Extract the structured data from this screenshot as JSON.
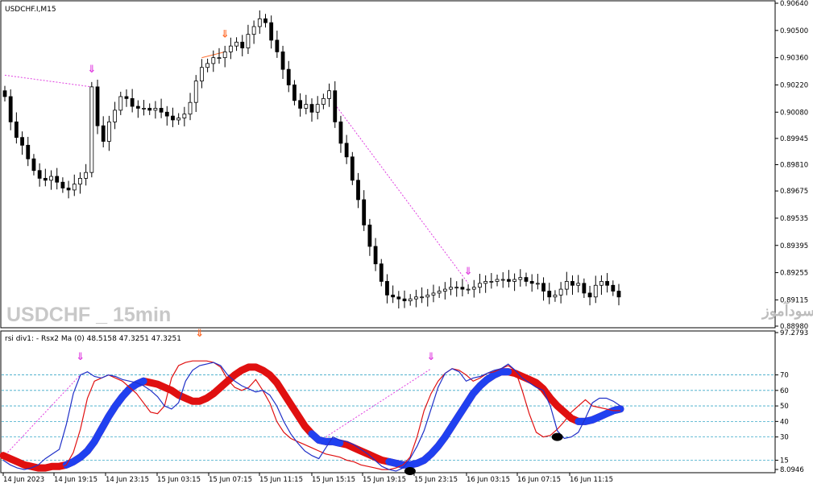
{
  "chart_data": [
    {
      "type": "candlestick",
      "title": "USDCHF.I,M15",
      "watermark": "USDCHF _ 15min",
      "watermark_site": "انتشار در سایت سودآموز",
      "ylim": [
        0.8898,
        0.9064
      ],
      "yticks": [
        "0.90640",
        "0.90500",
        "0.90360",
        "0.90220",
        "0.90080",
        "0.89945",
        "0.89810",
        "0.89675",
        "0.89535",
        "0.89395",
        "0.89255",
        "0.89115",
        "0.88980"
      ],
      "ytick_values": [
        0.9064,
        0.905,
        0.9036,
        0.9022,
        0.9008,
        0.89945,
        0.8981,
        0.89675,
        0.89535,
        0.89395,
        0.89255,
        0.89115,
        0.8898
      ],
      "close": [
        0.9016,
        0.9003,
        0.8995,
        0.8991,
        0.8984,
        0.8978,
        0.8974,
        0.8973,
        0.8975,
        0.8972,
        0.8969,
        0.8968,
        0.8971,
        0.8974,
        0.8977,
        0.9021,
        0.9001,
        0.8993,
        0.9003,
        0.9009,
        0.9016,
        0.9015,
        0.9011,
        0.901,
        0.901,
        0.9009,
        0.901,
        0.9008,
        0.9006,
        0.9004,
        0.9005,
        0.9007,
        0.9013,
        0.9024,
        0.9031,
        0.9033,
        0.9036,
        0.9036,
        0.9039,
        0.9042,
        0.9044,
        0.9041,
        0.9048,
        0.9052,
        0.9056,
        0.9054,
        0.9045,
        0.9039,
        0.903,
        0.9022,
        0.9014,
        0.901,
        0.9012,
        0.9008,
        0.9012,
        0.9015,
        0.9019,
        0.9003,
        0.8992,
        0.8985,
        0.8973,
        0.8963,
        0.895,
        0.8939,
        0.893,
        0.8921,
        0.8914,
        0.8913,
        0.8912,
        0.8911,
        0.8912,
        0.8913,
        0.8913,
        0.8914,
        0.8915,
        0.8916,
        0.8917,
        0.8918,
        0.8918,
        0.8917,
        0.8917,
        0.8918,
        0.892,
        0.8921,
        0.8921,
        0.8922,
        0.8922,
        0.8921,
        0.8922,
        0.8923,
        0.8921,
        0.892,
        0.892,
        0.8916,
        0.8913,
        0.8914,
        0.8917,
        0.8921,
        0.8919,
        0.892,
        0.8915,
        0.8913,
        0.8919,
        0.8921,
        0.8919,
        0.8916,
        0.8913
      ],
      "arrows": [
        {
          "bar": 15,
          "color": "#e040e0",
          "label": "bearish"
        },
        {
          "bar": 38,
          "color": "#ff6a2a",
          "label": "bearish"
        },
        {
          "bar": 80,
          "color": "#e040e0",
          "label": "bearish"
        }
      ],
      "divergence_lines": [
        {
          "from_bar": 0,
          "from_price": 0.9027,
          "to_bar": 15,
          "to_price": 0.9021,
          "color": "#e040e0"
        },
        {
          "from_bar": 34,
          "from_price": 0.9036,
          "to_bar": 38,
          "to_price": 0.9039,
          "color": "#ff6a2a"
        },
        {
          "from_bar": 57,
          "from_price": 0.9012,
          "to_bar": 80,
          "to_price": 0.892,
          "color": "#e040e0"
        }
      ]
    },
    {
      "type": "line",
      "title": "rsi div1:  - Rsx2 Ma (0) 48.5158 47.3251 47.3251",
      "ylim": [
        8.0,
        97.2793
      ],
      "yticks": [
        "97.2793",
        "70",
        "60",
        "50",
        "40",
        "30",
        "15",
        "8.0946"
      ],
      "levels": [
        70,
        60,
        50,
        40,
        30,
        15
      ],
      "x_labels": [
        "14 Jun 2023",
        "14 Jun 19:15",
        "14 Jun 23:15",
        "15 Jun 03:15",
        "15 Jun 07:15",
        "15 Jun 11:15",
        "15 Jun 15:15",
        "15 Jun 19:15",
        "15 Jun 23:15",
        "16 Jun 03:15",
        "16 Jun 07:15",
        "16 Jun 11:15"
      ],
      "series": [
        {
          "color": "#2030c8",
          "values": [
            15,
            12,
            10,
            9,
            10,
            12,
            16,
            19,
            22,
            38,
            58,
            70,
            72,
            69,
            68,
            70,
            69,
            67,
            66,
            65,
            63,
            60,
            56,
            50,
            48,
            52,
            66,
            73,
            76,
            77,
            78,
            76,
            70,
            66,
            63,
            61,
            59,
            60,
            57,
            50,
            40,
            32,
            26,
            21,
            18,
            16,
            23,
            30,
            28,
            27,
            25,
            22,
            19,
            15,
            11,
            9,
            8,
            10,
            16,
            24,
            34,
            48,
            62,
            71,
            74,
            72,
            66,
            68,
            69,
            71,
            73,
            74,
            77,
            73,
            68,
            65,
            62,
            60,
            50,
            34,
            29,
            30,
            33,
            42,
            52,
            55,
            55,
            53,
            50
          ]
        },
        {
          "color": "#e01010",
          "values": [
            17,
            16,
            14,
            13,
            12,
            12,
            12,
            11,
            10,
            12,
            20,
            35,
            55,
            66,
            68,
            70,
            68,
            66,
            62,
            58,
            52,
            46,
            45,
            50,
            68,
            76,
            78,
            79,
            79,
            79,
            78,
            75,
            67,
            62,
            60,
            62,
            67,
            60,
            52,
            40,
            33,
            29,
            27,
            25,
            23,
            21,
            19,
            18,
            17,
            15,
            14,
            12,
            11,
            10,
            9,
            9,
            10,
            12,
            17,
            30,
            47,
            58,
            66,
            71,
            74,
            73,
            70,
            66,
            68,
            71,
            72,
            74,
            76,
            73,
            60,
            45,
            33,
            30,
            31,
            35,
            40,
            46,
            50,
            54,
            50,
            49,
            48,
            47,
            47
          ]
        },
        {
          "color": "#e01010",
          "alt_color": "#2040f0",
          "width": 9,
          "values": [
            18,
            16,
            14,
            12,
            11,
            10,
            10,
            11,
            11,
            12,
            14,
            17,
            21,
            27,
            35,
            43,
            50,
            56,
            61,
            64,
            66,
            65,
            64,
            62,
            60,
            57,
            55,
            53,
            53,
            55,
            58,
            62,
            66,
            70,
            73,
            75,
            75,
            73,
            70,
            65,
            58,
            51,
            44,
            37,
            32,
            28,
            27,
            27,
            26,
            25,
            23,
            21,
            19,
            17,
            15,
            14,
            13,
            12,
            12,
            13,
            15,
            19,
            24,
            30,
            37,
            44,
            51,
            58,
            63,
            67,
            70,
            72,
            72,
            71,
            69,
            67,
            65,
            61,
            55,
            50,
            46,
            42,
            40,
            40,
            41,
            43,
            45,
            47,
            48
          ],
          "alt_ranges": [
            [
              9,
              20
            ],
            [
              44,
              48
            ],
            [
              55,
              72
            ],
            [
              82,
              88
            ]
          ]
        }
      ],
      "dots": [
        {
          "index": 58,
          "value": 8,
          "color": "#000000"
        },
        {
          "index": 79,
          "value": 30,
          "color": "#000000"
        }
      ],
      "arrows": [
        {
          "index": 11,
          "color": "#e040e0"
        },
        {
          "index": 28,
          "color": "#ff6a2a"
        },
        {
          "index": 61,
          "color": "#e040e0"
        }
      ],
      "divergence_lines": [
        {
          "from_index": 0,
          "from_value": 17,
          "to_index": 11,
          "to_value": 70,
          "color": "#e040e0"
        },
        {
          "from_index": 46,
          "from_value": 30,
          "to_index": 61,
          "to_value": 74,
          "color": "#e040e0"
        }
      ]
    }
  ]
}
